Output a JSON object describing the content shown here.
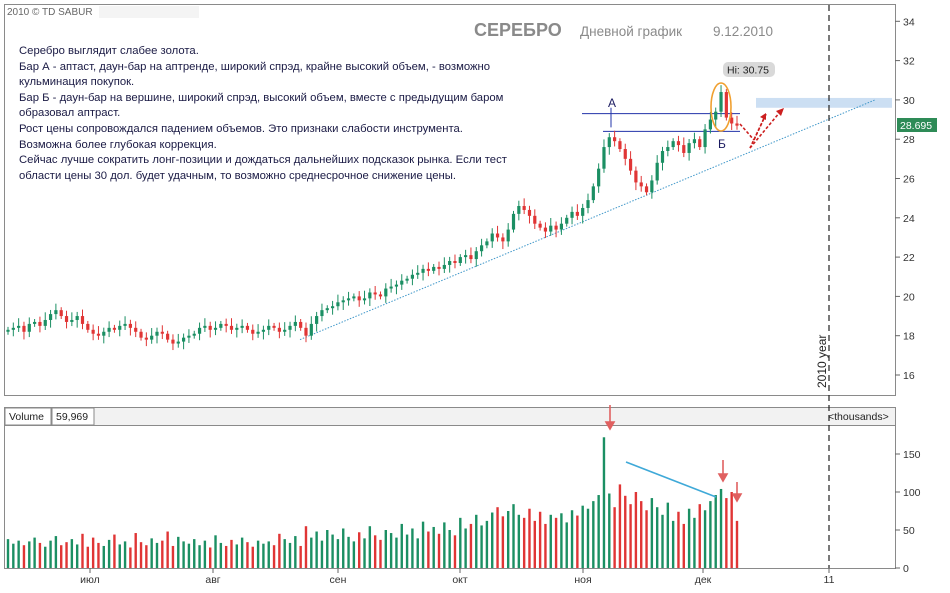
{
  "header": {
    "copyright": "2010 © TD SABUR",
    "title": "СЕРЕБРО",
    "subtitle": "Дневной график",
    "date": "9.12.2010"
  },
  "commentary": [
    "Серебро выглядит слабее золота.",
    "Бар А - аптаст, даун-бар на аптренде, широкий спрэд, крайне высокий объем, - возможно",
    "кульминация покупок.",
    "Бар Б - даун-бар на вершине, широкий спрэд, высокий объем,  вместе с предыдущим баром",
    "образовал аптраст.",
    "Рост цены сопровождался падением объемов. Это признаки слабости инструмента.",
    "Возможна более глубокая коррекция.",
    "Сейчас лучше сократить лонг-позиции и дождаться дальнейших подсказок рынка. Если тест",
    "области цены 30 дол. будет удачным, то возможно среднесрочное снижение цены."
  ],
  "annotations": {
    "bar_a": "A",
    "bar_b": "Б",
    "high": "Hi: 30.75",
    "last_price": "28.695",
    "year_marker": "2010 year"
  },
  "volume_panel": {
    "label": "Volume",
    "value": "59,969",
    "units": "<thousands>"
  },
  "colors": {
    "up": "#1b8f63",
    "down": "#e03535",
    "trendline": "#3f97c9",
    "level_lines": "#2233aa",
    "resistance_zone": "#c7dcf2",
    "last_price_badge": "#2e8b57",
    "volume_trend": "#3fa9d8",
    "arrows": "#cc1f1f",
    "highlight": "#f0a030"
  },
  "chart_data": {
    "type": "candlestick",
    "x_ticks": [
      "июл",
      "авг",
      "сен",
      "окт",
      "ноя",
      "дек",
      "11"
    ],
    "price_axis": {
      "ticks": [
        16,
        18,
        20,
        22,
        24,
        26,
        28,
        30,
        32,
        34
      ],
      "ylim": [
        15,
        35
      ]
    },
    "volume_axis": {
      "ticks": [
        0,
        50,
        100,
        150
      ],
      "ylim": [
        0,
        180
      ]
    },
    "high": 30.75,
    "last": 28.695,
    "levels": [
      29.3,
      28.4
    ],
    "resistance_zone": [
      29.6,
      30.1
    ],
    "trendline": [
      [
        0,
        17.8
      ],
      [
        1,
        30.0
      ]
    ],
    "close_series": [
      18.3,
      18.4,
      18.5,
      18.2,
      18.6,
      18.7,
      18.5,
      18.8,
      19.1,
      19.3,
      19.0,
      18.7,
      18.8,
      19.0,
      18.6,
      18.3,
      18.1,
      18.0,
      18.2,
      18.4,
      18.3,
      18.5,
      18.6,
      18.4,
      18.2,
      17.9,
      17.8,
      18.0,
      18.2,
      18.1,
      17.8,
      17.6,
      17.7,
      17.9,
      18.0,
      18.1,
      18.4,
      18.5,
      18.3,
      18.4,
      18.6,
      18.5,
      18.3,
      18.4,
      18.5,
      18.3,
      18.1,
      18.2,
      18.3,
      18.5,
      18.4,
      18.2,
      18.3,
      18.5,
      18.7,
      18.4,
      18.0,
      18.6,
      19.0,
      19.3,
      19.4,
      19.5,
      19.7,
      19.8,
      19.9,
      20.0,
      19.8,
      19.9,
      20.2,
      20.1,
      20.0,
      20.4,
      20.5,
      20.6,
      20.8,
      20.9,
      21.1,
      21.2,
      21.4,
      21.3,
      21.5,
      21.4,
      21.6,
      21.8,
      21.7,
      22.0,
      22.1,
      21.9,
      22.3,
      22.6,
      22.8,
      23.2,
      23.0,
      22.8,
      23.4,
      24.2,
      24.6,
      24.4,
      24.1,
      23.7,
      23.5,
      23.3,
      23.6,
      23.4,
      23.7,
      24.0,
      24.3,
      24.1,
      24.5,
      24.9,
      25.6,
      26.5,
      27.6,
      28.1,
      27.9,
      27.5,
      27.0,
      26.4,
      25.8,
      25.6,
      25.3,
      25.9,
      26.8,
      27.4,
      27.6,
      27.9,
      27.7,
      27.3,
      27.8,
      28.0,
      27.6,
      28.5,
      29.0,
      29.4,
      30.4,
      29.1,
      28.8,
      28.69
    ],
    "volume_series": [
      38,
      32,
      36,
      30,
      35,
      40,
      33,
      28,
      36,
      42,
      30,
      34,
      38,
      31,
      45,
      28,
      40,
      33,
      29,
      37,
      44,
      31,
      35,
      27,
      46,
      34,
      30,
      39,
      33,
      36,
      48,
      29,
      41,
      35,
      32,
      38,
      30,
      36,
      27,
      43,
      33,
      29,
      37,
      31,
      40,
      34,
      28,
      36,
      32,
      35,
      30,
      45,
      38,
      33,
      42,
      29,
      55,
      40,
      48,
      36,
      50,
      44,
      38,
      52,
      41,
      35,
      47,
      39,
      55,
      43,
      37,
      50,
      46,
      40,
      58,
      44,
      52,
      39,
      61,
      48,
      54,
      45,
      60,
      50,
      43,
      66,
      52,
      58,
      70,
      56,
      62,
      73,
      80,
      68,
      75,
      84,
      70,
      66,
      78,
      62,
      74,
      58,
      70,
      66,
      72,
      60,
      76,
      69,
      82,
      78,
      88,
      96,
      172,
      98,
      80,
      110,
      95,
      84,
      100,
      88,
      76,
      92,
      80,
      70,
      86,
      62,
      74,
      58,
      78,
      66,
      84,
      76,
      88,
      96,
      104,
      92,
      100,
      62
    ]
  }
}
